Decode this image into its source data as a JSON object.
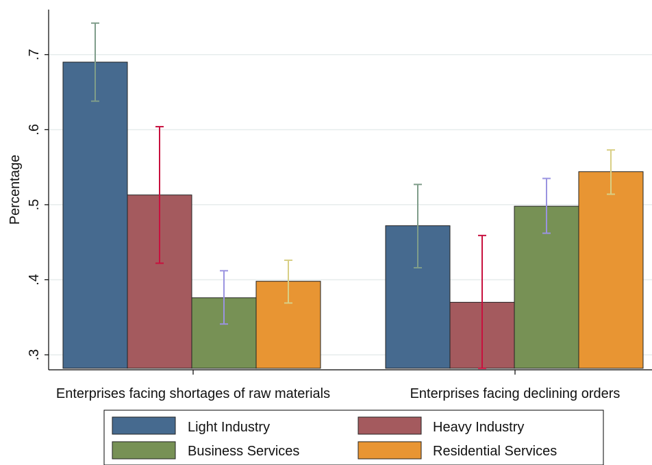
{
  "chart_data": {
    "type": "bar",
    "title": "",
    "xlabel": "",
    "ylabel": "Percentage",
    "categories": [
      "Enterprises facing shortages of raw materials",
      "Enterprises facing declining orders"
    ],
    "ylim": [
      0.28,
      0.76
    ],
    "yticks": [
      {
        "value": 0.3,
        "label": ".3"
      },
      {
        "value": 0.4,
        "label": ".4"
      },
      {
        "value": 0.5,
        "label": ".5"
      },
      {
        "value": 0.6,
        "label": ".6"
      },
      {
        "value": 0.7,
        "label": ".7"
      }
    ],
    "grid": true,
    "error_bars": true,
    "legend_position": "bottom",
    "series": [
      {
        "name": "Light Industry",
        "color": "#466a8f",
        "error_color": "#7f9d8a",
        "values": [
          0.69,
          0.472
        ],
        "ci_low": [
          0.638,
          0.416
        ],
        "ci_high": [
          0.742,
          0.527
        ]
      },
      {
        "name": "Heavy Industry",
        "color": "#a45a5e",
        "error_color": "#c8103e",
        "values": [
          0.513,
          0.37
        ],
        "ci_low": [
          0.422,
          0.282
        ],
        "ci_high": [
          0.604,
          0.459
        ]
      },
      {
        "name": "Business Services",
        "color": "#779155",
        "error_color": "#9a93e0",
        "values": [
          0.376,
          0.498
        ],
        "ci_low": [
          0.341,
          0.462
        ],
        "ci_high": [
          0.412,
          0.535
        ]
      },
      {
        "name": "Residential Services",
        "color": "#e89533",
        "error_color": "#d8cf85",
        "values": [
          0.398,
          0.544
        ],
        "ci_low": [
          0.369,
          0.514
        ],
        "ci_high": [
          0.426,
          0.573
        ]
      }
    ]
  }
}
